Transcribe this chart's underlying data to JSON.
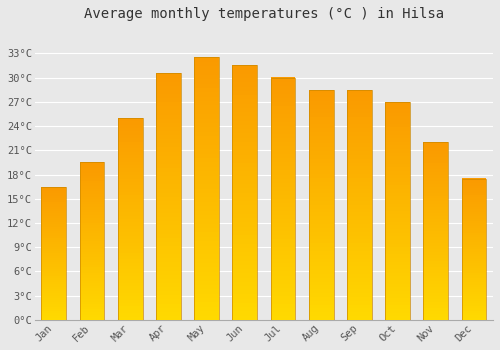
{
  "months": [
    "Jan",
    "Feb",
    "Mar",
    "Apr",
    "May",
    "Jun",
    "Jul",
    "Aug",
    "Sep",
    "Oct",
    "Nov",
    "Dec"
  ],
  "values": [
    16.5,
    19.5,
    25.0,
    30.5,
    32.5,
    31.5,
    30.0,
    28.5,
    28.5,
    27.0,
    22.0,
    17.5
  ],
  "bar_color_main": "#FFA500",
  "bar_color_light": "#FFD050",
  "title": "Average monthly temperatures (°C ) in Hilsa",
  "ylim": [
    0,
    36
  ],
  "yticks": [
    0,
    3,
    6,
    9,
    12,
    15,
    18,
    21,
    24,
    27,
    30,
    33
  ],
  "ytick_labels": [
    "0°C",
    "3°C",
    "6°C",
    "9°C",
    "12°C",
    "15°C",
    "18°C",
    "21°C",
    "24°C",
    "27°C",
    "30°C",
    "33°C"
  ],
  "background_color": "#e8e8e8",
  "plot_bg_color": "#e8e8e8",
  "grid_color": "#ffffff",
  "title_fontsize": 10,
  "tick_fontsize": 7.5,
  "bar_width": 0.65
}
